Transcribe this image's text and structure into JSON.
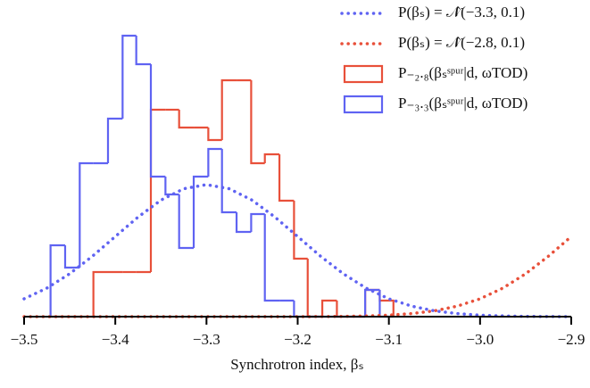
{
  "chart_data": {
    "type": "histogram",
    "xlabel": "Synchrotron index, βₛ",
    "xlim": [
      -3.5,
      -2.9
    ],
    "xticks": [
      {
        "value": -3.5,
        "label": "−3.5"
      },
      {
        "value": -3.4,
        "label": "−3.4"
      },
      {
        "value": -3.3,
        "label": "−3.3"
      },
      {
        "value": -3.2,
        "label": "−3.2"
      },
      {
        "value": -3.1,
        "label": "−3.1"
      },
      {
        "value": -3.0,
        "label": "−3.0"
      },
      {
        "value": -2.9,
        "label": "−2.9"
      }
    ],
    "ylim": [
      0,
      32
    ],
    "bins": [
      -3.471,
      -3.455,
      -3.439,
      -3.424,
      -3.408,
      -3.392,
      -3.377,
      -3.361,
      -3.345,
      -3.33,
      -3.314,
      -3.298,
      -3.283,
      -3.267,
      -3.251,
      -3.236,
      -3.22,
      -3.204,
      -3.189,
      -3.173,
      -3.157,
      -3.142,
      -3.126,
      -3.11,
      -3.095
    ],
    "series": [
      {
        "name": "P₋₂.₈(βₛˢᵖᵘʳ|d, ωTOD)",
        "color": "#e8503a",
        "values": [
          0,
          0,
          0,
          5.0,
          5.0,
          5.0,
          5.0,
          23.2,
          23.2,
          21.2,
          21.2,
          19.8,
          26.5,
          26.5,
          17.2,
          18.2,
          13.0,
          6.5,
          0,
          1.8,
          0,
          0,
          3.0,
          1.8
        ]
      },
      {
        "name": "P₋₃.₃(βₛˢᵖᵘʳ|d, ωTOD)",
        "color": "#5f63f2",
        "values": [
          8.0,
          5.5,
          17.2,
          17.2,
          22.2,
          31.5,
          28.3,
          15.7,
          13.7,
          7.7,
          15.7,
          18.8,
          11.7,
          9.5,
          11.5,
          1.8,
          1.8,
          0,
          0,
          0,
          0,
          0,
          3.0,
          0
        ]
      }
    ],
    "curves": {
      "x": [
        -3.5,
        -3.475,
        -3.45,
        -3.425,
        -3.4,
        -3.375,
        -3.35,
        -3.325,
        -3.3,
        -3.275,
        -3.25,
        -3.225,
        -3.2,
        -3.175,
        -3.15,
        -3.125,
        -3.1,
        -3.075,
        -3.05,
        -3.025,
        -3.0,
        -2.975,
        -2.95,
        -2.925,
        -2.9
      ],
      "series": [
        {
          "name": "P(βₛ) = 𝒩̂(−3.3, 0.1)",
          "color": "#5f63f2",
          "values": [
            2.0,
            3.2,
            4.81,
            6.78,
            8.98,
            11.17,
            13.06,
            14.34,
            14.8,
            14.34,
            13.06,
            11.17,
            8.98,
            6.78,
            4.81,
            3.2,
            2.0,
            1.18,
            0.65,
            0.34,
            0.16,
            0.08,
            0.03,
            0.01,
            0.0
          ]
        },
        {
          "name": "P(βₛ) = 𝒩̂(−2.8, 0.1)",
          "color": "#e8503a",
          "values": [
            0,
            0,
            0,
            0,
            0,
            0,
            0,
            0,
            0,
            0,
            0,
            0,
            0,
            0.01,
            0.03,
            0.08,
            0.16,
            0.34,
            0.65,
            1.18,
            2.0,
            3.2,
            4.81,
            6.78,
            8.98
          ]
        }
      ]
    }
  }
}
